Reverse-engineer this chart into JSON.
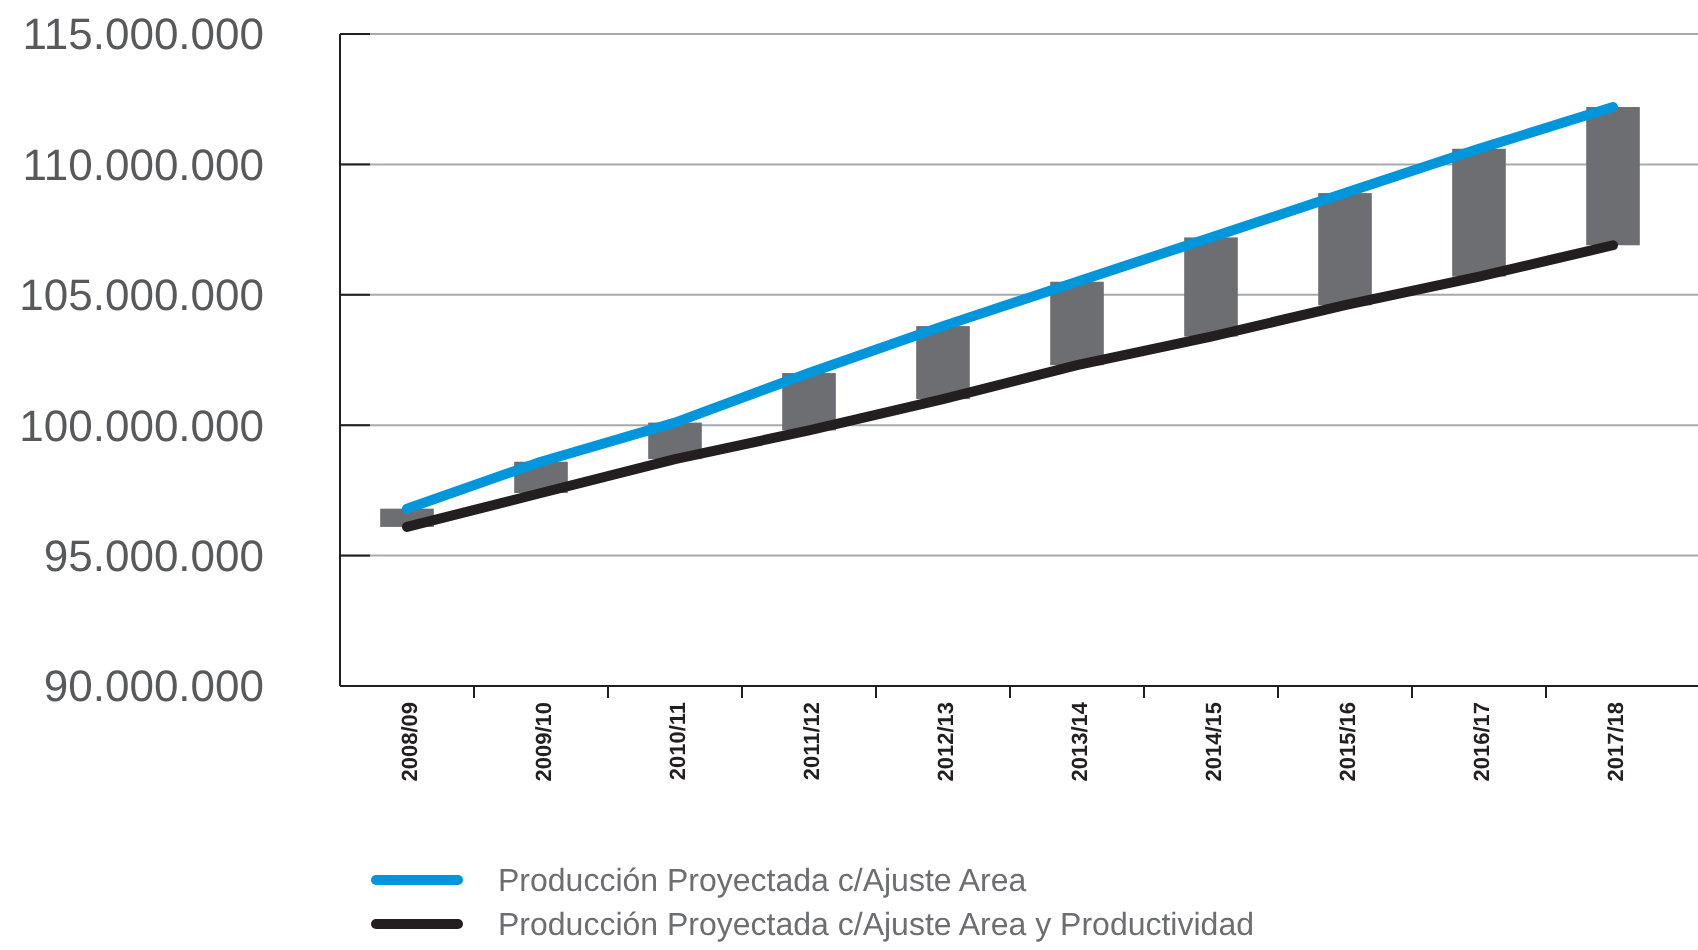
{
  "chart_data": {
    "type": "bar",
    "categories": [
      "2008/09",
      "2009/10",
      "2010/11",
      "2011/12",
      "2012/13",
      "2013/14",
      "2014/15",
      "2015/16",
      "2016/17",
      "2017/18"
    ],
    "series": [
      {
        "color": "#6d6e71",
        "base": [
          96100000,
          97400000,
          98700000,
          99800000,
          101000000,
          102300000,
          103400000,
          104600000,
          105700000,
          106900000
        ],
        "values": [
          700000,
          1200000,
          1400000,
          2200000,
          2800000,
          3200000,
          3800000,
          4300000,
          4900000,
          5300000
        ]
      },
      {
        "type": "line",
        "name": "Producción Proyectada c/Ajuste Area",
        "color": "#0096db",
        "values": [
          96800000,
          98600000,
          100100000,
          102000000,
          103800000,
          105500000,
          107200000,
          108900000,
          110600000,
          112200000
        ]
      },
      {
        "type": "line",
        "name": "Producción Proyectada c/Ajuste Area y Productividad",
        "color": "#231f20",
        "values": [
          96100000,
          97400000,
          98700000,
          99800000,
          101000000,
          102300000,
          103400000,
          104600000,
          105700000,
          106900000
        ]
      }
    ],
    "ylim": [
      90000000,
      115000000
    ],
    "yticks": [
      {
        "value": 90000000,
        "label": "90.000.000"
      },
      {
        "value": 95000000,
        "label": "95.000.000"
      },
      {
        "value": 100000000,
        "label": "100.000.000"
      },
      {
        "value": 105000000,
        "label": "105.000.000"
      },
      {
        "value": 110000000,
        "label": "110.000.000"
      },
      {
        "value": 115000000,
        "label": "115.000.000"
      }
    ],
    "grid": "y",
    "legend": "bottom",
    "marker": "none",
    "line_style": "solid"
  }
}
